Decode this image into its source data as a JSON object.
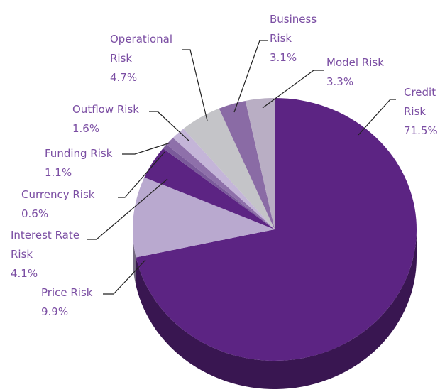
{
  "chart_data": {
    "type": "pie",
    "three_d": true,
    "categories": [
      "Credit Risk",
      "Price Risk",
      "Interest Rate Risk",
      "Currency Risk",
      "Funding Risk",
      "Outflow Risk",
      "Operational Risk",
      "Business Risk",
      "Model Risk"
    ],
    "values": [
      71.5,
      9.9,
      4.1,
      0.6,
      1.1,
      1.6,
      4.7,
      3.1,
      3.3
    ],
    "value_labels": [
      "71.5%",
      "9.9%",
      "4.1%",
      "0.6%",
      "1.1%",
      "1.6%",
      "4.7%",
      "3.1%",
      "3.3%"
    ],
    "colors": [
      "#5c2483",
      "#b9a9cf",
      "#5c2483",
      "#7a5a9a",
      "#8e70aa",
      "#c4b5d8",
      "#c4c4c8",
      "#8a6ba5",
      "#b9aec4"
    ]
  }
}
